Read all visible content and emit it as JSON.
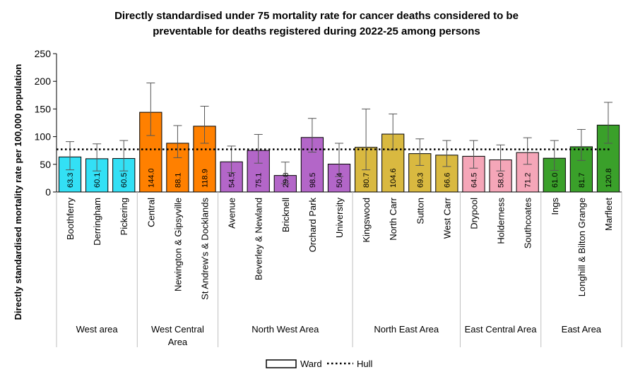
{
  "chart_data": {
    "type": "bar",
    "title_lines": [
      "Directly standardised under 75 mortality rate for cancer deaths considered to be",
      "preventable for deaths registered during 2022-25 among persons"
    ],
    "ylabel": "Directly standardised mortality rate per 100,000 population",
    "xlabel": "",
    "ylim": [
      0,
      250
    ],
    "yticks": [
      0,
      50,
      100,
      150,
      200,
      250
    ],
    "grid": false,
    "legend_position": "bottom",
    "legend": [
      {
        "label": "Ward",
        "style": "bar-outline"
      },
      {
        "label": "Hull",
        "style": "dotted-line"
      }
    ],
    "reference_line": {
      "name": "Hull",
      "value": 77
    },
    "groups": [
      {
        "name": "West area",
        "color": "#33e0f5",
        "wards": [
          {
            "name": "Boothferry",
            "value": 63.3,
            "ci": [
              40,
              91
            ]
          },
          {
            "name": "Derringham",
            "value": 60.1,
            "ci": [
              38,
              87
            ]
          },
          {
            "name": "Pickering",
            "value": 60.5,
            "ci": [
              38,
              93
            ]
          }
        ]
      },
      {
        "name": "West Central Area",
        "name_lines": [
          "West Central",
          "Area"
        ],
        "color": "#ff8000",
        "wards": [
          {
            "name": "Central",
            "value": 144.0,
            "ci": [
              102,
              197
            ]
          },
          {
            "name": "Newington & Gipsyville",
            "value": 88.1,
            "ci": [
              62,
              120
            ]
          },
          {
            "name": "St Andrew's & Docklands",
            "value": 118.9,
            "ci": [
              88,
              155
            ]
          }
        ]
      },
      {
        "name": "North West Area",
        "color": "#b366c8",
        "wards": [
          {
            "name": "Avenue",
            "value": 54.5,
            "ci": [
              35,
              83
            ]
          },
          {
            "name": "Beverley & Newland",
            "value": 75.1,
            "ci": [
              52,
              104
            ]
          },
          {
            "name": "Bricknell",
            "value": 29.8,
            "ci": [
              15,
              54
            ]
          },
          {
            "name": "Orchard Park",
            "value": 98.5,
            "ci": [
              72,
              133
            ]
          },
          {
            "name": "University",
            "value": 50.4,
            "ci": [
              28,
              88
            ]
          }
        ]
      },
      {
        "name": "North East Area",
        "color": "#d9b940",
        "wards": [
          {
            "name": "Kingswood",
            "value": 80.7,
            "ci": [
              40,
              150
            ]
          },
          {
            "name": "North Carr",
            "value": 104.6,
            "ci": [
              76,
              141
            ]
          },
          {
            "name": "Sutton",
            "value": 69.3,
            "ci": [
              48,
              96
            ]
          },
          {
            "name": "West Carr",
            "value": 66.6,
            "ci": [
              46,
              93
            ]
          }
        ]
      },
      {
        "name": "East Central Area",
        "color": "#f5a6b8",
        "wards": [
          {
            "name": "Drypool",
            "value": 64.5,
            "ci": [
              43,
              93
            ]
          },
          {
            "name": "Holderness",
            "value": 58.0,
            "ci": [
              38,
              85
            ]
          },
          {
            "name": "Southcoates",
            "value": 71.2,
            "ci": [
              50,
              98
            ]
          }
        ]
      },
      {
        "name": "East Area",
        "color": "#3aa02a",
        "wards": [
          {
            "name": "Ings",
            "value": 61.0,
            "ci": [
              39,
              93
            ]
          },
          {
            "name": "Longhill & Bilton Grange",
            "value": 81.7,
            "ci": [
              57,
              113
            ]
          },
          {
            "name": "Marfleet",
            "value": 120.8,
            "ci": [
              88,
              162
            ]
          }
        ]
      }
    ]
  }
}
